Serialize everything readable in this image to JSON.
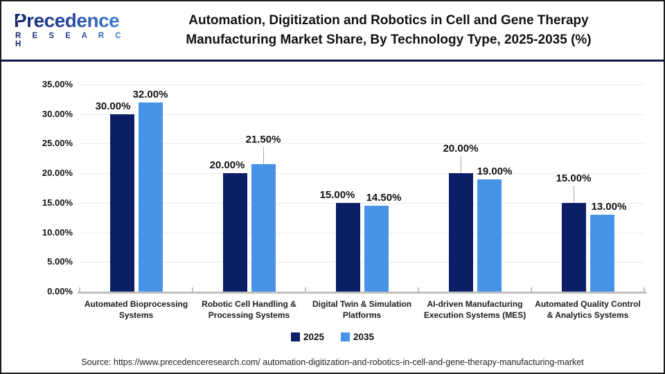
{
  "header": {
    "logo": {
      "name": "Precedence",
      "subtitle": "R E S E A R C H"
    },
    "title_line1": "Automation, Digitization and Robotics in Cell and Gene Therapy",
    "title_line2": "Manufacturing Market Share, By Technology Type, 2025-2035 (%)"
  },
  "chart_data": {
    "type": "bar",
    "title": "Automation, Digitization and Robotics in Cell and Gene Therapy Manufacturing Market Share, By Technology Type, 2025-2035 (%)",
    "categories": [
      "Automated Bioprocessing Systems",
      "Robotic Cell Handling & Processing Systems",
      "Digital Twin & Simulation Platforms",
      "AI-driven Manufacturing Execution Systems (MES)",
      "Automated Quality Control & Analytics Systems"
    ],
    "series": [
      {
        "name": "2025",
        "color": "#0c1e66",
        "values": [
          30.0,
          20.0,
          15.0,
          20.0,
          15.0
        ],
        "labels": [
          "30.00%",
          "20.00%",
          "15.00%",
          "20.00%",
          "15.00%"
        ]
      },
      {
        "name": "2035",
        "color": "#4793e8",
        "values": [
          32.0,
          21.5,
          14.5,
          19.0,
          13.0
        ],
        "labels": [
          "32.00%",
          "21.50%",
          "14.50%",
          "19.00%",
          "13.00%"
        ]
      }
    ],
    "xlabel": "",
    "ylabel": "",
    "ylim": [
      0,
      35
    ],
    "ytick_step": 5,
    "yticks": [
      "35.00%",
      "30.00%",
      "25.00%",
      "20.00%",
      "15.00%",
      "10.00%",
      "5.00%",
      "0.00%"
    ],
    "grid": true,
    "legend_position": "bottom",
    "label_layout": {
      "dx": [
        [
          -13,
          0
        ],
        [
          -11,
          0
        ],
        [
          -15,
          11
        ],
        [
          0,
          8
        ],
        [
          0,
          10
        ]
      ],
      "raised": [
        [
          false,
          false
        ],
        [
          false,
          true
        ],
        [
          false,
          false
        ],
        [
          true,
          false
        ],
        [
          true,
          false
        ]
      ]
    }
  },
  "legend": [
    {
      "label": "2025",
      "color": "#0c1e66"
    },
    {
      "label": "2035",
      "color": "#4793e8"
    }
  ],
  "source": "Source: https://www.precedenceresearch.com/ automation-digitization-and-robotics-in-cell-and-gene-therapy-manufacturing-market"
}
